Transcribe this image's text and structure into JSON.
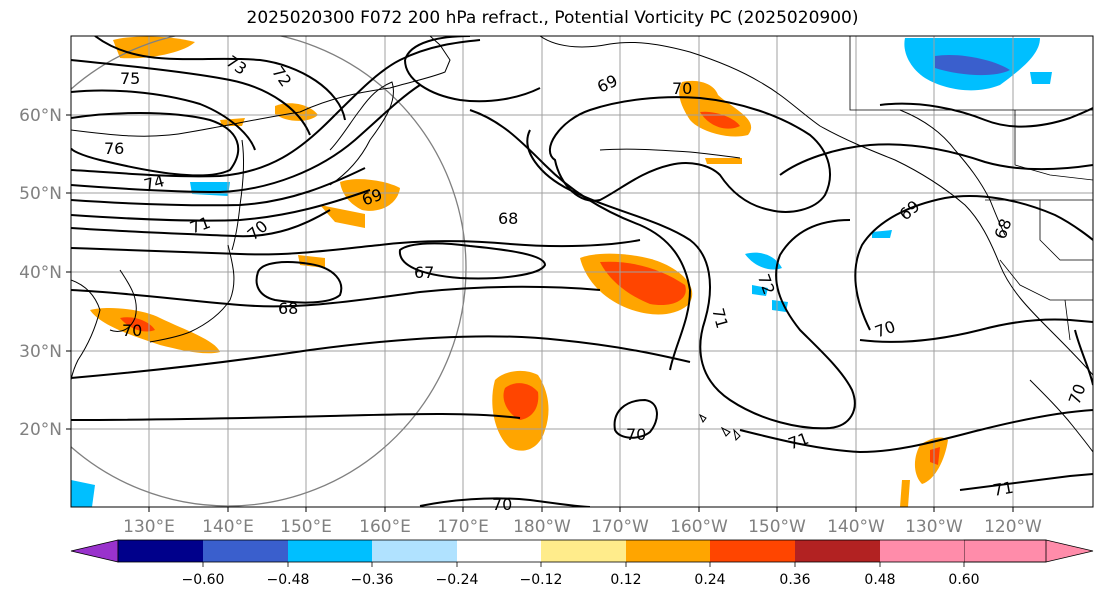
{
  "title": "2025020300 F072 200 hPa refract., Potential Vorticity PC (2025020900)",
  "lon_ticks": [
    "130°E",
    "140°E",
    "150°E",
    "160°E",
    "170°E",
    "180°W",
    "170°W",
    "160°W",
    "150°W",
    "140°W",
    "130°W",
    "120°W"
  ],
  "lat_ticks": [
    "60°N",
    "50°N",
    "40°N",
    "30°N",
    "20°N"
  ],
  "contour_labels": [
    "75",
    "73",
    "72",
    "69",
    "70",
    "76",
    "74",
    "71",
    "70",
    "69",
    "68",
    "67",
    "68",
    "70",
    "72",
    "71",
    "70",
    "69",
    "68",
    "70",
    "70",
    "71",
    "71",
    "70"
  ],
  "colorbar": {
    "ticks": [
      "−0.60",
      "−0.48",
      "−0.36",
      "−0.24",
      "−0.12",
      "0.12",
      "0.24",
      "0.36",
      "0.48",
      "0.60"
    ],
    "colors": [
      "#9932CC",
      "#00008B",
      "#3A5FCD",
      "#00BFFF",
      "#B0E2FF",
      "#FFFFFF",
      "#FFEC8B",
      "#FFA500",
      "#FF4500",
      "#B22222",
      "#FF8CAA"
    ]
  },
  "colors": {
    "contour": "#000000",
    "grid": "#a0a0a0",
    "coast": "#000000",
    "pv_low1": "#00BFFF",
    "pv_low2": "#3A5FCD",
    "pv_high1": "#FFA500",
    "pv_high2": "#FF4500",
    "pv_high0": "#FFEC8B"
  }
}
